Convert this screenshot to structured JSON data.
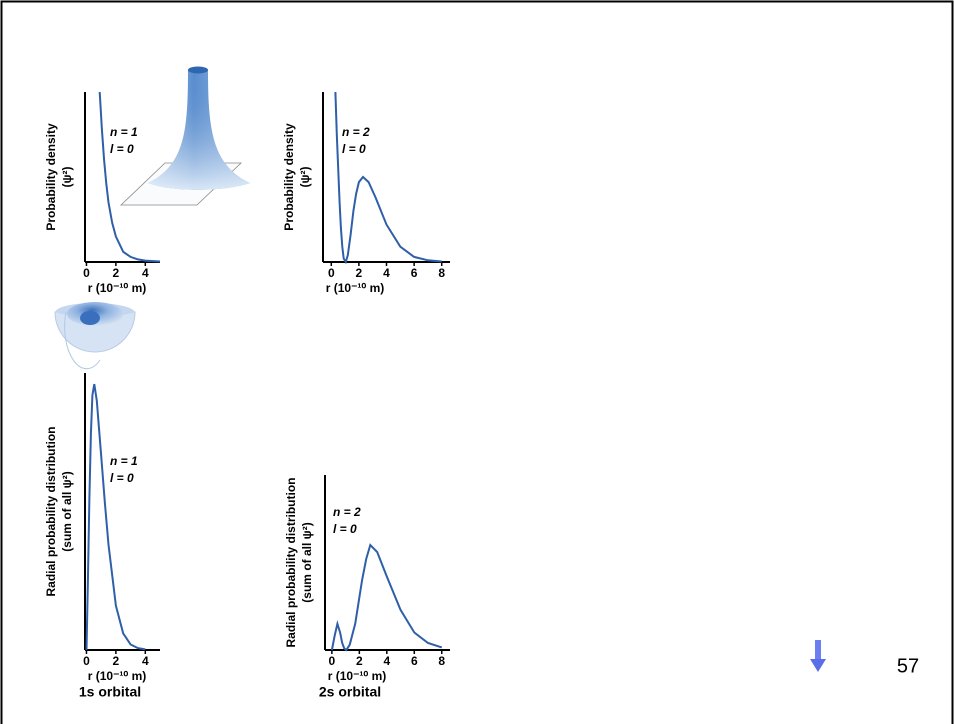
{
  "chart_data": [
    {
      "type": "line",
      "y_label": [
        "Probability density",
        "(ψ²)"
      ],
      "x_label": "r (10⁻¹⁰ m)",
      "annotations": [
        "n = 1",
        "l = 0"
      ],
      "color": "#2e5fa8",
      "x": [
        0.9,
        1.05,
        1.2,
        1.35,
        1.5,
        1.75,
        2,
        2.5,
        3,
        3.5,
        4,
        5
      ],
      "values": [
        100,
        78,
        60,
        46,
        35,
        23,
        15,
        6,
        3,
        1.5,
        0.8,
        0.3
      ],
      "xlim": [
        -0.1,
        5
      ],
      "ylim": [
        0,
        100
      ],
      "xticks": [
        0,
        2,
        4
      ]
    },
    {
      "type": "line",
      "y_label": [
        "Probability density",
        "(ψ²)"
      ],
      "x_label": "r (10⁻¹⁰ m)",
      "annotations": [
        "n = 2",
        "l = 0"
      ],
      "color": "#2e5fa8",
      "x": [
        0.3,
        0.4,
        0.5,
        0.6,
        0.7,
        0.8,
        0.9,
        1.05,
        1.2,
        1.4,
        1.6,
        1.8,
        2,
        2.3,
        2.7,
        3.2,
        4,
        5,
        6,
        7,
        8
      ],
      "values": [
        100,
        75,
        55,
        35,
        20,
        9,
        2,
        0,
        4,
        16,
        30,
        40,
        47,
        50,
        47,
        38,
        22,
        9,
        3,
        1,
        0.3
      ],
      "xlim": [
        -0.6,
        8.6
      ],
      "ylim": [
        0,
        100
      ],
      "xticks": [
        0,
        2,
        4,
        6,
        8
      ]
    },
    {
      "type": "line",
      "y_label": [
        "Radial probability distribution",
        "(sum of all ψ²)"
      ],
      "x_label": "r (10⁻¹⁰ m)",
      "annotations": [
        "n = 1",
        "l = 0"
      ],
      "caption": "1s orbital",
      "color": "#2e5fa8",
      "x": [
        0,
        0.1,
        0.2,
        0.3,
        0.4,
        0.53,
        0.7,
        0.85,
        1,
        1.25,
        1.5,
        2,
        2.5,
        3,
        3.5,
        4
      ],
      "values": [
        0,
        25,
        55,
        78,
        92,
        96,
        90,
        80,
        70,
        53,
        38,
        16,
        6,
        2,
        0.7,
        0.2
      ],
      "xlim": [
        -0.1,
        5
      ],
      "ylim": [
        0,
        100
      ],
      "xticks": [
        0,
        2,
        4
      ]
    },
    {
      "type": "line",
      "y_label": [
        "Radial probability distribution",
        "(sum of all ψ²)"
      ],
      "x_label": "r (10⁻¹⁰ m)",
      "annotations": [
        "n = 2",
        "l = 0"
      ],
      "caption": "2s orbital",
      "color": "#2e5fa8",
      "x": [
        0,
        0.2,
        0.4,
        0.6,
        0.75,
        0.9,
        1.05,
        1.3,
        1.7,
        2.2,
        2.5,
        2.8,
        3.3,
        4,
        5,
        6,
        7,
        8
      ],
      "values": [
        0,
        8,
        15,
        10,
        4,
        1,
        0,
        3,
        15,
        40,
        52,
        60,
        56,
        42,
        23,
        10,
        4,
        1.5
      ],
      "xlim": [
        -0.5,
        8.6
      ],
      "ylim": [
        0,
        100
      ],
      "xticks": [
        0,
        2,
        4,
        6,
        8
      ]
    }
  ],
  "page_number": "57"
}
